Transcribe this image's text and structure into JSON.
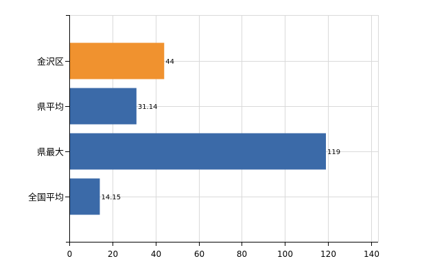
{
  "chart_data": {
    "type": "bar",
    "orientation": "horizontal",
    "categories": [
      "金沢区",
      "県平均",
      "県最大",
      "全国平均"
    ],
    "values": [
      44,
      31.14,
      119,
      14.15
    ],
    "data_labels": [
      "44",
      "31.14",
      "119",
      "14.15"
    ],
    "bar_colors": [
      "#f0922f",
      "#3b6aa8",
      "#3b6aa8",
      "#3b6aa8"
    ],
    "xlim": [
      0,
      140
    ],
    "x_ticks": [
      0,
      20,
      40,
      60,
      80,
      100,
      120,
      140
    ],
    "grid": true,
    "title": "",
    "xlabel": "",
    "ylabel": ""
  }
}
